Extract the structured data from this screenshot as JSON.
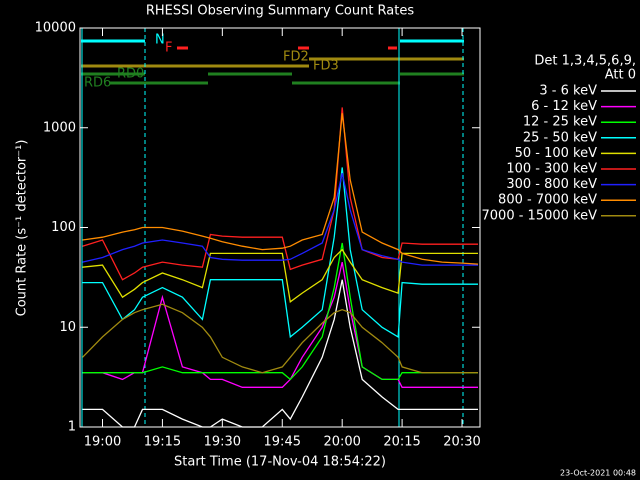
{
  "chart_data": {
    "type": "line",
    "title": "RHESSI Observing Summary Count Rates",
    "x_label": "Start Time (17-Nov-04 18:54:22)",
    "y_label": "Count Rate (s⁻¹ detector⁻¹)",
    "legend_title": [
      "Det 1,3,4,5,6,9,",
      "Att 0"
    ],
    "timestamp": "23-Oct-2021 00:48",
    "annotations": [
      "N",
      "F",
      "FD2",
      "FD3",
      "RD0",
      "RD6"
    ],
    "log_y": true,
    "x": [
      "18:55",
      "19:00",
      "19:05",
      "19:08",
      "19:10",
      "19:15",
      "19:20",
      "19:25",
      "19:27",
      "19:30",
      "19:35",
      "19:40",
      "19:45",
      "19:47",
      "19:50",
      "19:55",
      "19:58",
      "20:00",
      "20:02",
      "20:05",
      "20:10",
      "20:14",
      "20:15",
      "20:20",
      "20:25",
      "20:30",
      "20:34"
    ],
    "xlim": [
      "18:54:22",
      "20:34:30"
    ],
    "xticks": [
      "19:00",
      "19:15",
      "19:30",
      "19:45",
      "20:00",
      "20:15",
      "20:30"
    ],
    "ylim": [
      1,
      10000
    ],
    "yticks": [
      1,
      10,
      100,
      1000,
      10000
    ],
    "series": [
      {
        "name": "3 - 6 keV",
        "color": "#ffffff",
        "values": [
          1.5,
          1.5,
          1,
          1,
          1.5,
          1.5,
          1.2,
          1,
          1,
          1.2,
          1,
          1,
          1.5,
          1.2,
          2,
          5,
          12,
          30,
          10,
          3,
          2,
          1.5,
          1.5,
          1.5,
          1.5,
          1.5,
          1.5
        ]
      },
      {
        "name": "6 - 12 keV",
        "color": "#ff00ff",
        "values": [
          3.5,
          3.5,
          3,
          3.5,
          3.5,
          20,
          4,
          3.5,
          3,
          3,
          2.5,
          2.5,
          2.5,
          3,
          5,
          10,
          20,
          45,
          15,
          4,
          3,
          3,
          2.5,
          2.5,
          2.5,
          2.5,
          2.5
        ]
      },
      {
        "name": "12 - 25 keV",
        "color": "#00ff00",
        "values": [
          3.5,
          3.5,
          3.5,
          3.5,
          3.5,
          4,
          3.5,
          3.5,
          3.5,
          3.5,
          3.5,
          3.5,
          3.5,
          3,
          4,
          8,
          25,
          70,
          20,
          4,
          3,
          3,
          3.5,
          3.5,
          3.5,
          3.5,
          3.5
        ]
      },
      {
        "name": "25 - 50 keV",
        "color": "#00ffff",
        "values": [
          28,
          28,
          12,
          15,
          20,
          25,
          20,
          12,
          30,
          30,
          30,
          30,
          30,
          8,
          10,
          15,
          80,
          400,
          60,
          15,
          10,
          8,
          28,
          27,
          27,
          27,
          27
        ]
      },
      {
        "name": "50 - 100 keV",
        "color": "#e0e000",
        "values": [
          40,
          42,
          20,
          24,
          28,
          35,
          30,
          25,
          55,
          55,
          55,
          55,
          55,
          18,
          22,
          30,
          50,
          60,
          45,
          30,
          25,
          22,
          55,
          55,
          55,
          55,
          55
        ]
      },
      {
        "name": "100 - 300 keV",
        "color": "#ff2020",
        "values": [
          65,
          75,
          30,
          35,
          40,
          45,
          42,
          40,
          85,
          82,
          80,
          80,
          80,
          38,
          42,
          48,
          150,
          1600,
          200,
          60,
          50,
          48,
          70,
          68,
          68,
          68,
          68
        ]
      },
      {
        "name": "300 - 800 keV",
        "color": "#2020ff",
        "values": [
          45,
          50,
          60,
          65,
          70,
          75,
          70,
          65,
          50,
          48,
          47,
          47,
          47,
          48,
          55,
          70,
          150,
          350,
          150,
          60,
          52,
          48,
          45,
          42,
          42,
          42,
          42
        ]
      },
      {
        "name": "800 - 7000 keV",
        "color": "#ff8c00",
        "values": [
          75,
          80,
          90,
          95,
          100,
          100,
          92,
          82,
          78,
          72,
          65,
          60,
          62,
          65,
          75,
          85,
          200,
          1400,
          300,
          90,
          70,
          60,
          55,
          48,
          45,
          44,
          43
        ]
      },
      {
        "name": "7000 - 15000 keV",
        "color": "#a08a10",
        "values": [
          5,
          8,
          12,
          14,
          15,
          17,
          14,
          10,
          8,
          5,
          4,
          3.5,
          4,
          5,
          7,
          11,
          14,
          15,
          14,
          10,
          7,
          5,
          4,
          3.5,
          3.5,
          3.5,
          3.5
        ]
      }
    ]
  }
}
